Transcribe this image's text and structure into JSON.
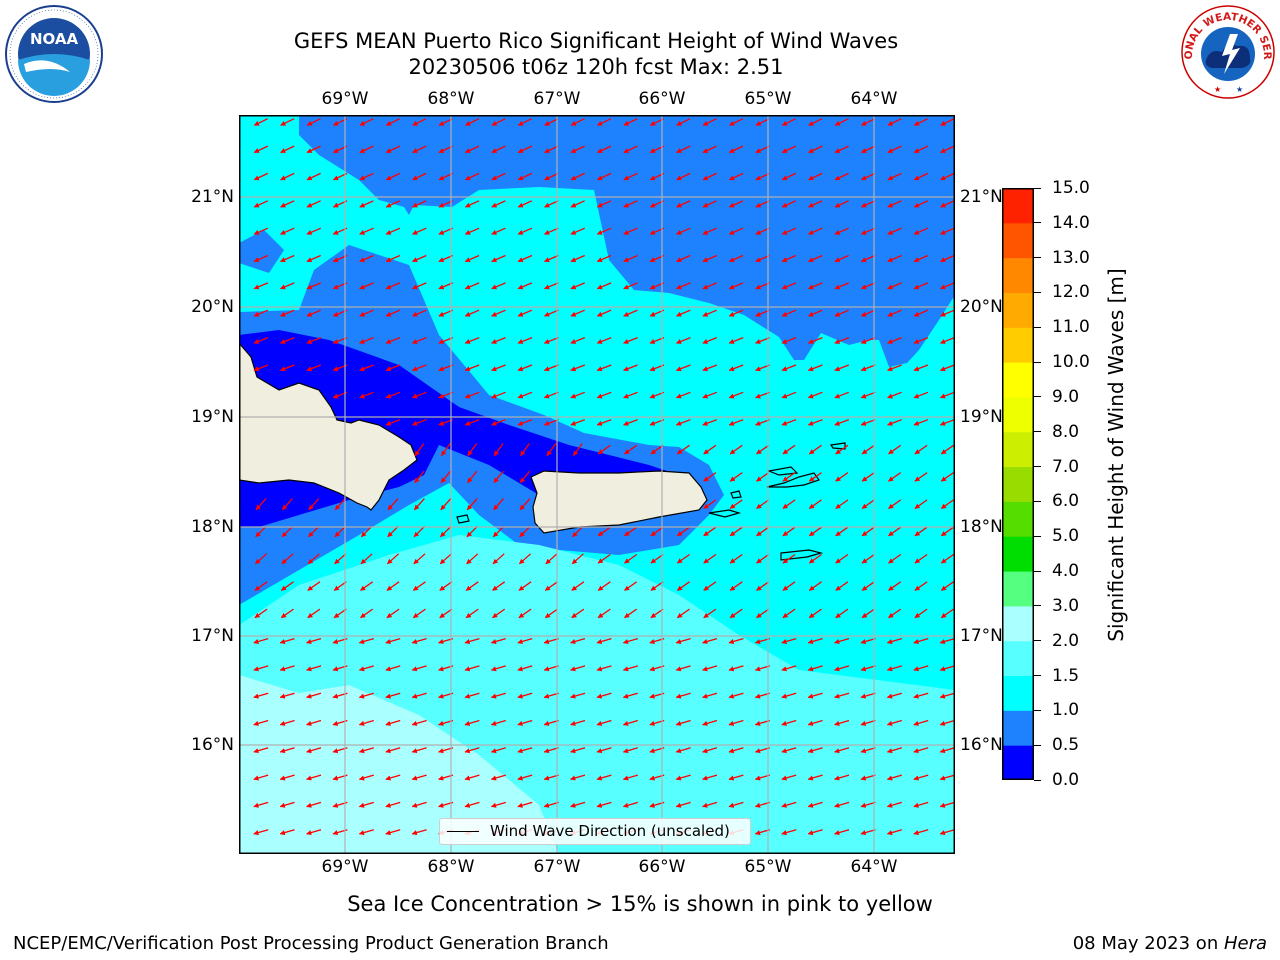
{
  "title": {
    "line1": "GEFS MEAN Puerto Rico Significant Height of Wind Waves",
    "line2": "20230506 t06z 120h fcst   Max: 2.51"
  },
  "logos": {
    "left": {
      "icon": "noaa-logo",
      "text": "NOAA"
    },
    "right": {
      "icon": "national-weather-service-logo",
      "text": "NATIONAL WEATHER SERVICE"
    }
  },
  "map": {
    "lon_labels": [
      "69°W",
      "68°W",
      "67°W",
      "66°W",
      "65°W",
      "64°W"
    ],
    "lat_labels": [
      "21°N",
      "20°N",
      "19°N",
      "18°N",
      "17°N",
      "16°N"
    ],
    "land_color": "#efeedf",
    "arrow_color": "#ff0000",
    "grid_color": "#b0b0b0",
    "legend_label": "Wind Wave Direction (unscaled)"
  },
  "colorbar": {
    "title": "Significant Height of Wind Waves [m]",
    "ticks": [
      "0.0",
      "0.5",
      "1.0",
      "1.5",
      "2.0",
      "3.0",
      "4.0",
      "5.0",
      "6.0",
      "7.0",
      "8.0",
      "9.0",
      "10.0",
      "11.0",
      "12.0",
      "13.0",
      "14.0",
      "15.0"
    ],
    "colors": [
      "#0000ff",
      "#1e82ff",
      "#00ffff",
      "#57ffff",
      "#aaffff",
      "#55ff80",
      "#00dd00",
      "#55dd00",
      "#99dd00",
      "#ccee00",
      "#eeff00",
      "#ffff00",
      "#ffcc00",
      "#ffaa00",
      "#ff8800",
      "#ff5500",
      "#ff2200"
    ]
  },
  "note": "Sea Ice Concentration > 15% is shown in pink to yellow",
  "footer": {
    "left": "NCEP/EMC/Verification Post Processing Product Generation Branch",
    "right_prefix": "08 May 2023 on ",
    "right_host": "Hera"
  }
}
